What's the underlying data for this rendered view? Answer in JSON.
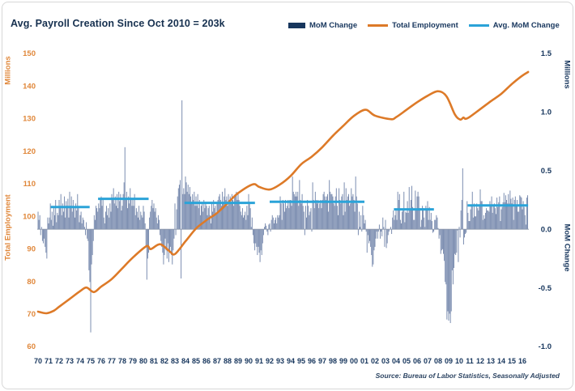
{
  "title": "Avg. Payroll Creation Since Oct 2010 = 203k",
  "source_note": "Source: Bureau of Labor Statistics, Seasonally Adjusted",
  "legend": [
    {
      "label": "MoM Change",
      "color": "#17365d",
      "swatch": "bar"
    },
    {
      "label": "Total Employment",
      "color": "#dd7a28",
      "swatch": "line"
    },
    {
      "label": "Avg. MoM Change",
      "color": "#2ba3d8",
      "swatch": "line"
    }
  ],
  "colors": {
    "navy": "#17365d",
    "orange_line": "#dd7a28",
    "orange_label": "#e0873a",
    "avg_blue": "#2ba3d8",
    "bar_fill": "#7f90b2",
    "zero_line": "#8a96aa"
  },
  "left_axis": {
    "title_top": "Millions",
    "title_mid": "Total Employment",
    "ticks": [
      150,
      140,
      130,
      120,
      110,
      100,
      90,
      80,
      70,
      60
    ],
    "range": [
      60,
      150
    ]
  },
  "right_axis": {
    "title_top": "Millions",
    "title_mid": "MoM Change",
    "ticks": [
      "1.5",
      "1.0",
      "0.5",
      "0.0",
      "-0.5",
      "-1.0"
    ],
    "range": [
      -1.0,
      1.5
    ]
  },
  "x_axis": {
    "labels": [
      "70",
      "71",
      "72",
      "73",
      "74",
      "75",
      "76",
      "77",
      "78",
      "79",
      "80",
      "81",
      "82",
      "83",
      "84",
      "85",
      "86",
      "87",
      "88",
      "89",
      "90",
      "91",
      "92",
      "93",
      "94",
      "95",
      "96",
      "97",
      "98",
      "99",
      "00",
      "01",
      "02",
      "03",
      "04",
      "05",
      "06",
      "07",
      "08",
      "09",
      "10",
      "11",
      "12",
      "13",
      "14",
      "15",
      "16"
    ],
    "start_year": 1970,
    "end_year": 2016
  },
  "chart_data": {
    "type": "combo",
    "title": "Avg. Payroll Creation Since Oct 2010 = 203k",
    "grid": false,
    "legend_position": "top-right",
    "ylim_left": [
      60,
      150
    ],
    "ylim_right": [
      -1.0,
      1.5
    ],
    "series": [
      {
        "name": "MoM Change",
        "type": "bar",
        "axis": "right",
        "unit": "millions of jobs, month-over-month",
        "start": "1970-01",
        "freq": "monthly",
        "values": [
          0.15,
          0.08,
          0.12,
          -0.05,
          0.02,
          -0.1,
          -0.12,
          -0.08,
          -0.15,
          -0.2,
          -0.25,
          0.1,
          0.05,
          0.1,
          0.22,
          0.08,
          0.15,
          0.03,
          0.18,
          0.12,
          0.25,
          0.06,
          0.14,
          0.12,
          0.25,
          0.18,
          0.3,
          0.12,
          0.22,
          0.15,
          0.28,
          0.1,
          0.24,
          0.2,
          0.26,
          0.1,
          0.32,
          0.2,
          0.28,
          0.15,
          0.25,
          0.18,
          0.1,
          0.22,
          0.16,
          0.3,
          0.18,
          0.06,
          0.12,
          0.15,
          0.05,
          0.1,
          0.08,
          0.02,
          -0.05,
          0.06,
          -0.08,
          -0.1,
          -0.35,
          -0.45,
          -0.88,
          -0.3,
          -0.22,
          -0.1,
          0.12,
          0.08,
          0.2,
          0.18,
          0.15,
          0.22,
          0.18,
          0.25,
          0.28,
          0.2,
          0.25,
          0.1,
          0.05,
          0.15,
          0.2,
          0.12,
          0.18,
          0.1,
          0.22,
          0.15,
          0.3,
          0.25,
          0.35,
          0.22,
          0.28,
          0.2,
          0.3,
          0.18,
          0.32,
          0.24,
          0.3,
          0.16,
          0.2,
          0.3,
          0.4,
          0.7,
          0.25,
          0.32,
          0.18,
          0.28,
          0.22,
          0.35,
          0.25,
          0.2,
          0.25,
          0.2,
          0.3,
          0.12,
          0.18,
          0.15,
          0.1,
          0.2,
          0.08,
          0.15,
          0.12,
          0.1,
          0.2,
          0.15,
          0.05,
          -0.15,
          -0.43,
          -0.25,
          -0.2,
          0.1,
          0.15,
          0.2,
          0.25,
          0.18,
          0.22,
          0.15,
          0.18,
          0.1,
          0.05,
          0.12,
          0.08,
          -0.05,
          -0.1,
          -0.15,
          -0.2,
          -0.3,
          -0.22,
          -0.08,
          -0.18,
          -0.25,
          -0.12,
          -0.28,
          -0.2,
          -0.15,
          -0.22,
          -0.3,
          -0.18,
          -0.08,
          0.22,
          -0.05,
          0.17,
          0.28,
          0.35,
          0.38,
          0.42,
          -0.42,
          1.1,
          0.3,
          0.35,
          0.3,
          0.45,
          0.4,
          0.32,
          0.38,
          0.3,
          0.36,
          0.28,
          0.22,
          0.3,
          0.25,
          0.32,
          0.2,
          0.28,
          0.2,
          0.3,
          0.18,
          0.25,
          0.12,
          0.2,
          0.22,
          0.15,
          0.25,
          0.18,
          0.22,
          0.2,
          0.12,
          0.18,
          0.2,
          0.12,
          0.05,
          0.22,
          0.15,
          0.25,
          0.18,
          0.2,
          0.13,
          0.22,
          0.25,
          0.28,
          0.3,
          0.25,
          0.2,
          0.32,
          0.22,
          0.28,
          0.35,
          0.25,
          0.28,
          0.2,
          0.3,
          0.25,
          0.28,
          0.22,
          0.3,
          0.25,
          0.2,
          0.28,
          0.3,
          0.32,
          0.25,
          0.3,
          0.25,
          0.2,
          0.15,
          0.12,
          0.18,
          0.1,
          0.12,
          0.15,
          0.08,
          0.2,
          0.12,
          0.3,
          0.22,
          0.18,
          0.02,
          0.1,
          -0.05,
          -0.12,
          -0.18,
          -0.12,
          -0.15,
          -0.22,
          -0.15,
          -0.2,
          -0.28,
          -0.18,
          -0.22,
          -0.12,
          -0.05,
          0.02,
          0.05,
          0.03,
          -0.02,
          -0.05,
          0.04,
          0.05,
          -0.02,
          0.08,
          0.12,
          0.1,
          0.05,
          0.08,
          0.1,
          0.05,
          0.12,
          0.1,
          0.12,
          0.28,
          0.22,
          0.08,
          0.25,
          0.22,
          0.15,
          0.25,
          0.18,
          0.2,
          0.25,
          0.18,
          0.25,
          0.25,
          0.2,
          0.45,
          0.32,
          0.3,
          0.28,
          0.32,
          0.28,
          0.32,
          0.2,
          0.42,
          0.25,
          0.22,
          0.3,
          0.2,
          0.15,
          -0.05,
          0.2,
          0.1,
          0.25,
          0.2,
          0.12,
          0.15,
          0.18,
          -0.02,
          0.4,
          0.25,
          0.18,
          0.32,
          0.25,
          0.22,
          0.25,
          0.18,
          0.22,
          0.25,
          0.18,
          0.25,
          0.3,
          0.32,
          0.28,
          0.25,
          0.28,
          0.3,
          0.15,
          0.42,
          0.32,
          0.3,
          0.3,
          0.28,
          0.22,
          0.2,
          0.28,
          0.35,
          0.2,
          0.12,
          0.35,
          0.25,
          0.22,
          0.28,
          0.3,
          0.12,
          0.4,
          0.15,
          0.35,
          0.25,
          0.28,
          0.3,
          0.2,
          0.22,
          0.35,
          0.28,
          0.3,
          0.25,
          0.15,
          0.45,
          0.28,
          0.22,
          -0.05,
          0.15,
          0.02,
          0.12,
          -0.02,
          0.2,
          0.12,
          0.05,
          0.08,
          -0.02,
          -0.2,
          -0.05,
          -0.12,
          -0.1,
          -0.15,
          -0.22,
          -0.32,
          -0.3,
          -0.18,
          -0.15,
          -0.08,
          -0.02,
          -0.08,
          -0.02,
          0.04,
          -0.08,
          -0.02,
          -0.06,
          0.1,
          0.02,
          -0.15,
          0.08,
          -0.16,
          -0.12,
          -0.05,
          -0.02,
          0.0,
          0.02,
          -0.04,
          0.1,
          0.16,
          0.08,
          0.12,
          0.16,
          0.08,
          0.32,
          0.25,
          0.3,
          0.08,
          0.05,
          0.15,
          0.16,
          0.32,
          0.06,
          0.15,
          0.14,
          0.24,
          0.14,
          0.36,
          0.17,
          0.25,
          0.37,
          0.19,
          0.08,
          0.08,
          0.33,
          0.16,
          0.28,
          0.32,
          0.28,
          0.18,
          0.02,
          0.08,
          0.2,
          0.18,
          0.1,
          0.02,
          0.2,
          0.17,
          0.24,
          0.08,
          0.19,
          0.08,
          0.14,
          0.07,
          -0.03,
          -0.02,
          0.08,
          0.08,
          0.12,
          0.1,
          0.01,
          -0.08,
          -0.05,
          -0.21,
          -0.18,
          -0.17,
          -0.21,
          -0.27,
          -0.45,
          -0.47,
          -0.77,
          -0.7,
          -0.78,
          -0.72,
          -0.8,
          -0.7,
          -0.35,
          -0.47,
          -0.33,
          -0.21,
          -0.22,
          -0.2,
          -0.01,
          -0.28,
          0.02,
          -0.07,
          0.16,
          0.25,
          0.52,
          -0.13,
          -0.07,
          -0.04,
          -0.03,
          0.24,
          0.14,
          0.07,
          0.07,
          0.17,
          0.21,
          0.32,
          0.1,
          0.22,
          0.11,
          0.11,
          0.22,
          0.18,
          0.16,
          0.2,
          0.34,
          0.24,
          0.24,
          0.08,
          0.12,
          0.09,
          0.14,
          0.18,
          0.16,
          0.16,
          0.15,
          0.24,
          0.2,
          0.28,
          0.14,
          0.2,
          0.22,
          0.18,
          0.13,
          0.27,
          0.19,
          0.23,
          0.28,
          0.07,
          0.17,
          0.19,
          0.23,
          0.31,
          0.23,
          0.29,
          0.25,
          0.22,
          0.3,
          0.22,
          0.33,
          0.26,
          0.22,
          0.27,
          0.08,
          0.25,
          0.28,
          0.21,
          0.25,
          0.15,
          0.15,
          0.29,
          0.28,
          0.27,
          0.17,
          0.24,
          0.19,
          0.12,
          0.04,
          0.27,
          0.29
        ]
      },
      {
        "name": "Total Employment",
        "type": "line",
        "axis": "left",
        "unit": "millions of jobs",
        "points": [
          [
            1970.0,
            70.7
          ],
          [
            1970.8,
            70.2
          ],
          [
            1971.5,
            71.0
          ],
          [
            1972.0,
            72.2
          ],
          [
            1973.0,
            74.6
          ],
          [
            1974.0,
            77.0
          ],
          [
            1974.6,
            78.1
          ],
          [
            1975.3,
            76.7
          ],
          [
            1976.0,
            78.4
          ],
          [
            1977.0,
            80.7
          ],
          [
            1978.0,
            84.0
          ],
          [
            1979.0,
            87.3
          ],
          [
            1980.3,
            90.8
          ],
          [
            1980.7,
            89.9
          ],
          [
            1981.6,
            91.4
          ],
          [
            1982.5,
            89.2
          ],
          [
            1983.0,
            88.4
          ],
          [
            1984.0,
            92.3
          ],
          [
            1985.0,
            96.2
          ],
          [
            1986.0,
            98.8
          ],
          [
            1987.0,
            101.0
          ],
          [
            1988.0,
            104.0
          ],
          [
            1989.0,
            107.1
          ],
          [
            1990.4,
            109.8
          ],
          [
            1991.0,
            109.0
          ],
          [
            1992.0,
            108.2
          ],
          [
            1993.0,
            109.8
          ],
          [
            1994.0,
            112.4
          ],
          [
            1995.0,
            116.0
          ],
          [
            1996.0,
            118.3
          ],
          [
            1997.0,
            121.2
          ],
          [
            1998.0,
            124.7
          ],
          [
            1999.0,
            127.8
          ],
          [
            2000.0,
            130.8
          ],
          [
            2001.1,
            132.7
          ],
          [
            2002.0,
            130.9
          ],
          [
            2003.5,
            129.8
          ],
          [
            2004.0,
            130.4
          ],
          [
            2005.0,
            132.7
          ],
          [
            2006.0,
            135.0
          ],
          [
            2007.0,
            137.0
          ],
          [
            2008.0,
            138.4
          ],
          [
            2008.8,
            136.8
          ],
          [
            2009.6,
            131.2
          ],
          [
            2010.1,
            129.7
          ],
          [
            2010.4,
            130.3
          ],
          [
            2010.6,
            129.9
          ],
          [
            2011.0,
            130.5
          ],
          [
            2012.0,
            132.9
          ],
          [
            2013.0,
            135.3
          ],
          [
            2014.0,
            137.6
          ],
          [
            2015.0,
            140.6
          ],
          [
            2016.0,
            143.2
          ],
          [
            2016.55,
            144.3
          ]
        ]
      },
      {
        "name": "Avg. MoM Change",
        "type": "line-segments",
        "axis": "right",
        "unit": "millions of jobs, expansion-period average",
        "segments": [
          {
            "from": 1971.2,
            "to": 1974.9,
            "value": 0.19
          },
          {
            "from": 1975.7,
            "to": 1980.5,
            "value": 0.26
          },
          {
            "from": 1983.9,
            "to": 1990.6,
            "value": 0.225
          },
          {
            "from": 1992.0,
            "to": 2001.0,
            "value": 0.235
          },
          {
            "from": 2003.8,
            "to": 2007.6,
            "value": 0.17
          },
          {
            "from": 2010.8,
            "to": 2016.55,
            "value": 0.203
          }
        ]
      }
    ]
  }
}
